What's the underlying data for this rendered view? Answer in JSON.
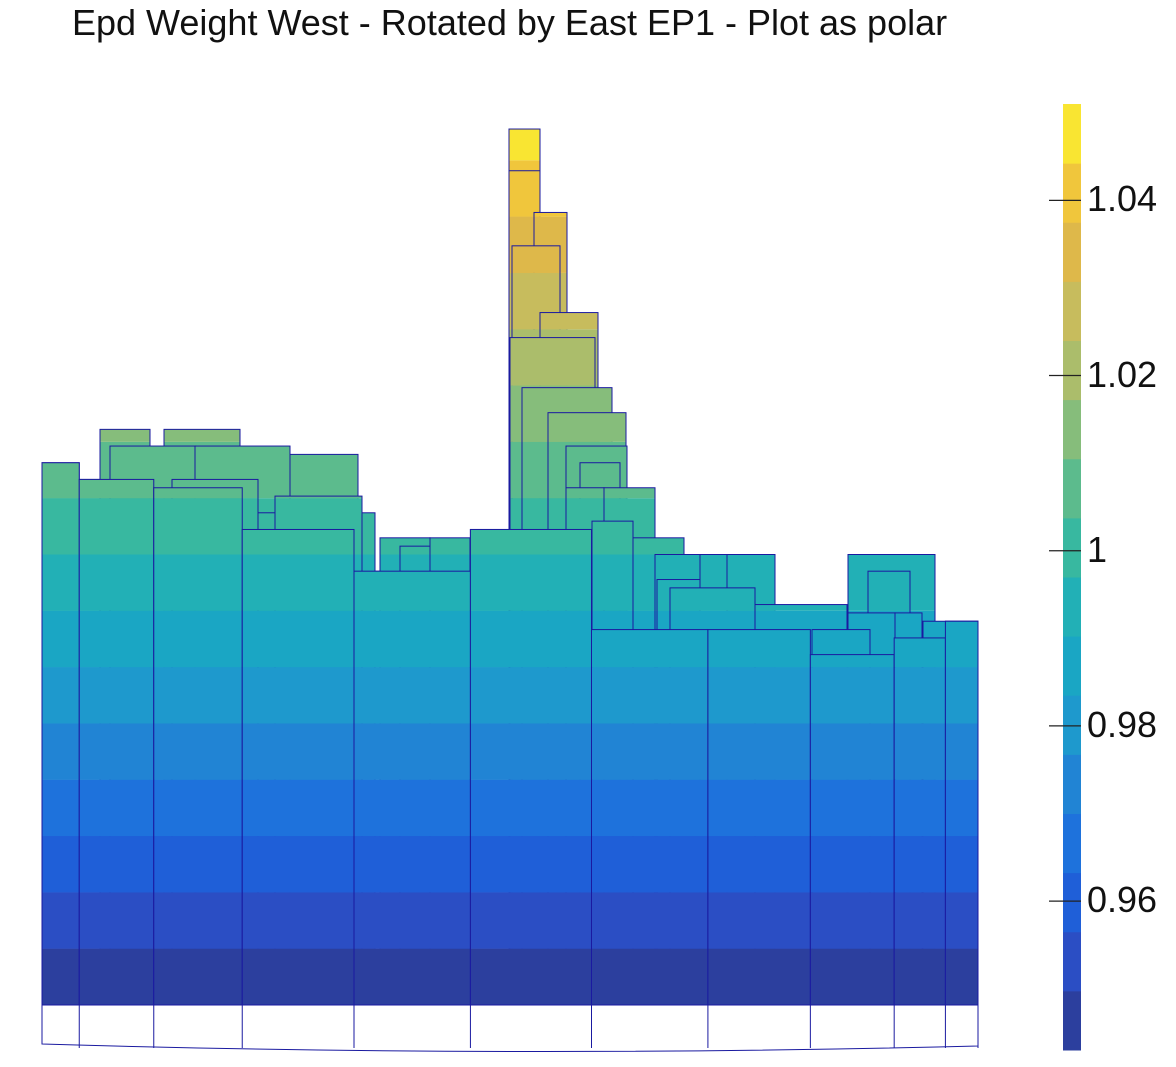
{
  "title": "Epd Weight West - Rotated by East EP1 - Plot as polar",
  "colors": {
    "edge": "#1a1aa0",
    "colormap": [
      "#2c3f9e",
      "#2b4ec4",
      "#1f5fd8",
      "#1e72dc",
      "#2184d4",
      "#1e99cd",
      "#1aa6c4",
      "#22b0b6",
      "#38b8a0",
      "#5cbb8d",
      "#86bd7b",
      "#abbd6b",
      "#c7bc5d",
      "#deb84a",
      "#f0c63c",
      "#f9e532"
    ]
  },
  "colorbar": {
    "min": 0.943,
    "max": 1.051,
    "ticks": [
      0.96,
      0.98,
      1,
      1.02,
      1.04
    ],
    "tick_labels": [
      "0.96",
      "0.98",
      "1",
      "1.02",
      "1.04"
    ]
  },
  "chart_data": {
    "type": "surface",
    "title": "Epd Weight West - Rotated by East EP1 - Plot as polar",
    "view": "side elevation, stepped bars of Epd weight",
    "z_range": [
      0.943,
      1.051
    ],
    "columns": [
      {
        "x": [
          0.04,
          0.08
        ],
        "z": 1.008
      },
      {
        "x": [
          0.08,
          0.16
        ],
        "z": 1.006
      },
      {
        "x": [
          0.16,
          0.255
        ],
        "z": 1.005
      },
      {
        "x": [
          0.255,
          0.375
        ],
        "z": 1.0
      },
      {
        "x": [
          0.375,
          0.5
        ],
        "z": 0.995
      },
      {
        "x": [
          0.5,
          0.63
        ],
        "z": 1.0
      },
      {
        "x": [
          0.63,
          0.755
        ],
        "z": 0.988
      },
      {
        "x": [
          0.755,
          0.865
        ],
        "z": 0.988
      },
      {
        "x": [
          0.865,
          0.955
        ],
        "z": 0.985
      },
      {
        "x": [
          0.955,
          1.01
        ],
        "z": 0.987
      },
      {
        "x": [
          1.01,
          1.045
        ],
        "z": 0.989
      }
    ],
    "peak": {
      "z": 1.048
    }
  }
}
